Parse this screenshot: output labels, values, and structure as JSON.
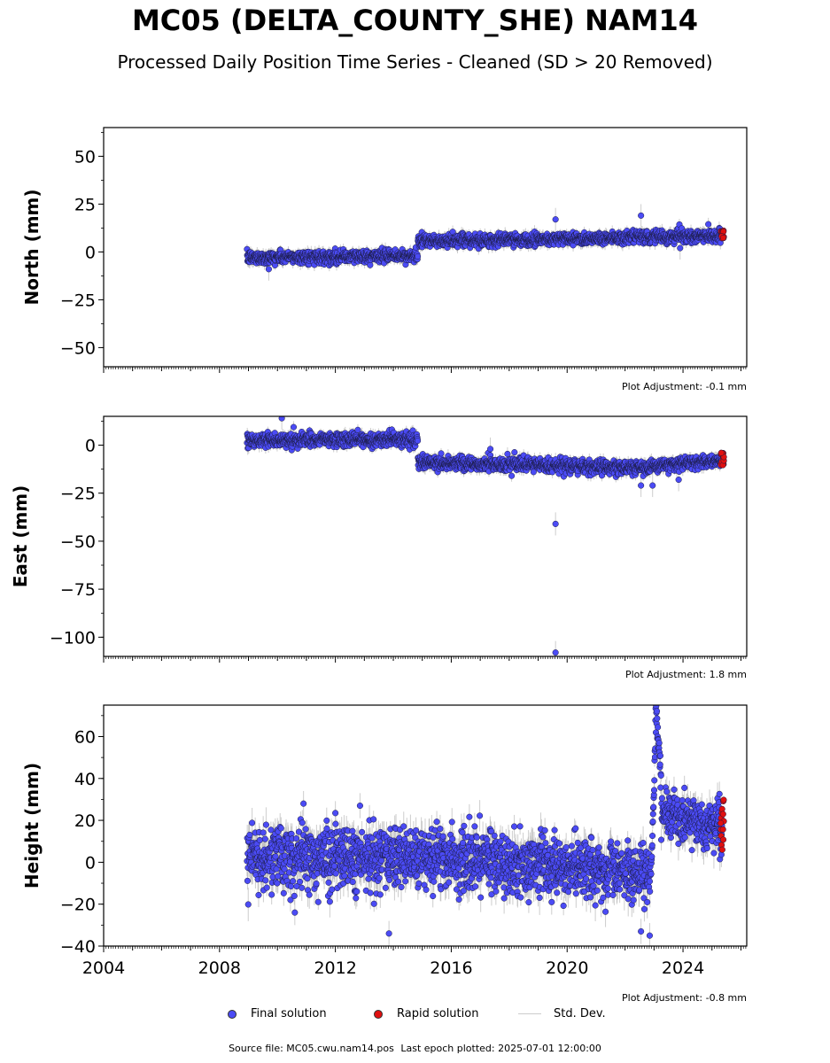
{
  "title": "MC05 (DELTA_COUNTY_SHE) NAM14",
  "subtitle": "Processed Daily Position Time Series - Cleaned (SD > 20 Removed)",
  "colors": {
    "final": "#4b4bf5",
    "rapid": "#e01010",
    "std": "#b8b8b8"
  },
  "legend": {
    "final": "Final solution",
    "rapid": "Rapid solution",
    "std": "Std. Dev."
  },
  "footer": {
    "source": "Source file: MC05.cwu.nam14.pos",
    "last_epoch": "Last epoch plotted: 2025-07-01 12:00:00"
  },
  "chart_data": [
    {
      "type": "scatter",
      "ylabel": "North (mm)",
      "xlim": [
        2004,
        2026.2
      ],
      "ylim": [
        -60,
        65
      ],
      "yticks": [
        50,
        25,
        0,
        -25,
        -50
      ],
      "ytick_labels": [
        "50",
        "25",
        "0",
        "−25",
        "−50"
      ],
      "adjustment": "Plot Adjustment: -0.1 mm",
      "show_xtick_labels": false,
      "segments": [
        {
          "x": [
            2008.95,
            2014.85
          ],
          "y": [
            -3,
            -2
          ],
          "noise": 1.6,
          "sd": 2.5
        },
        {
          "x": [
            2014.85,
            2025.35
          ],
          "y": [
            5.5,
            8.5
          ],
          "noise": 1.6,
          "sd": 2.5
        }
      ],
      "steps": [
        {
          "x": [
            2022.9,
            2023.1
          ],
          "dy": 1.5
        }
      ],
      "outliers": [
        {
          "x": 2019.6,
          "y": 17
        },
        {
          "x": 2022.55,
          "y": 19
        },
        {
          "x": 2023.9,
          "y": 2
        },
        {
          "x": 2009.7,
          "y": -9
        }
      ],
      "rapid": {
        "x": [
          2025.3,
          2025.42
        ],
        "y": [
          7,
          12
        ]
      }
    },
    {
      "type": "scatter",
      "ylabel": "East (mm)",
      "xlim": [
        2004,
        2026.2
      ],
      "ylim": [
        -110,
        15
      ],
      "yticks": [
        0,
        -25,
        -50,
        -75,
        -100
      ],
      "ytick_labels": [
        "0",
        "−25",
        "−50",
        "−75",
        "−100"
      ],
      "adjustment": "Plot Adjustment: 1.8 mm",
      "show_xtick_labels": false,
      "segments": [
        {
          "x": [
            2008.95,
            2014.85
          ],
          "y": [
            2.5,
            3
          ],
          "noise": 1.8,
          "sd": 2.5
        },
        {
          "x": [
            2014.85,
            2022.9
          ],
          "y": [
            -9,
            -12
          ],
          "noise": 1.8,
          "sd": 2.5
        },
        {
          "x": [
            2022.9,
            2025.35
          ],
          "y": [
            -11,
            -8
          ],
          "noise": 1.5,
          "sd": 2.5
        }
      ],
      "steps": [],
      "outliers": [
        {
          "x": 2019.6,
          "y": -41
        },
        {
          "x": 2019.6,
          "y": -108
        },
        {
          "x": 2010.15,
          "y": 14
        },
        {
          "x": 2017.35,
          "y": -2
        },
        {
          "x": 2022.55,
          "y": -21
        },
        {
          "x": 2022.95,
          "y": -21
        },
        {
          "x": 2023.85,
          "y": -18
        }
      ],
      "rapid": {
        "x": [
          2025.3,
          2025.42
        ],
        "y": [
          -11,
          -4
        ]
      }
    },
    {
      "type": "scatter",
      "ylabel": "Height (mm)",
      "xlim": [
        2004,
        2026.2
      ],
      "ylim": [
        -40,
        75
      ],
      "yticks": [
        60,
        40,
        20,
        0,
        -20,
        -40
      ],
      "ytick_labels": [
        "60",
        "40",
        "20",
        "0",
        "−20",
        "−40"
      ],
      "adjustment": "Plot Adjustment: -0.8 mm",
      "show_xtick_labels": true,
      "xticks": [
        2004,
        2008,
        2012,
        2016,
        2020,
        2024
      ],
      "xtick_labels": [
        "2004",
        "2008",
        "2012",
        "2016",
        "2020",
        "2024"
      ],
      "segments": [
        {
          "x": [
            2008.95,
            2014.85
          ],
          "y": [
            3,
            2
          ],
          "noise": 7,
          "sd": 6
        },
        {
          "x": [
            2014.85,
            2022.9
          ],
          "y": [
            3,
            -5
          ],
          "noise": 7,
          "sd": 6
        },
        {
          "x": [
            2023.25,
            2025.35
          ],
          "y": [
            22,
            18
          ],
          "noise": 6,
          "sd": 6
        }
      ],
      "steps": [],
      "ramps": [
        {
          "x": [
            2022.9,
            2023.05
          ],
          "y": [
            -8,
            60
          ],
          "n": 20
        },
        {
          "x": [
            2023.05,
            2023.25
          ],
          "y": [
            72,
            40
          ],
          "n": 25
        }
      ],
      "outliers": [
        {
          "x": 2013.85,
          "y": -34
        },
        {
          "x": 2010.6,
          "y": -24
        },
        {
          "x": 2010.9,
          "y": 28
        },
        {
          "x": 2012.85,
          "y": 27
        },
        {
          "x": 2022.85,
          "y": -35
        },
        {
          "x": 2022.55,
          "y": -33
        }
      ],
      "rapid": {
        "x": [
          2025.3,
          2025.42
        ],
        "y": [
          6,
          30
        ]
      }
    }
  ]
}
